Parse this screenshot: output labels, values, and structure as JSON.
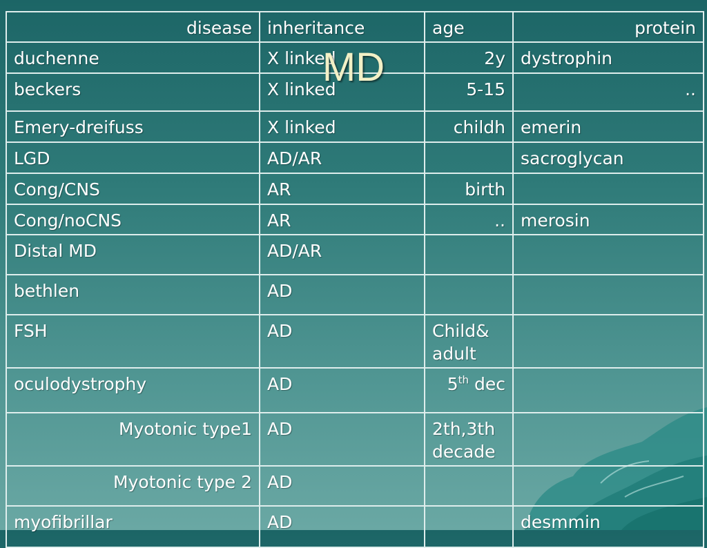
{
  "slide": {
    "title": "MD",
    "header": {
      "disease": "disease",
      "inheritance": "inheritance",
      "age": "age",
      "protein": "protein"
    },
    "rows": [
      {
        "disease": "duchenne",
        "inheritance": "X linked",
        "age": "2y",
        "protein": "dystrophin"
      },
      {
        "disease": "beckers",
        "inheritance": "X linked",
        "age": "5-15",
        "protein": ".."
      },
      {
        "disease": "Emery-dreifuss",
        "inheritance": "X linked",
        "age": "childh",
        "protein": "emerin"
      },
      {
        "disease": "LGD",
        "inheritance": "AD/AR",
        "age": "",
        "protein": "sacroglycan"
      },
      {
        "disease": "Cong/CNS",
        "inheritance": "AR",
        "age": "birth",
        "protein": ""
      },
      {
        "disease": "Cong/noCNS",
        "inheritance": "AR",
        "age": "..",
        "protein": "merosin"
      },
      {
        "disease": "Distal MD",
        "inheritance": "AD/AR",
        "age": "",
        "protein": ""
      },
      {
        "disease": "bethlen",
        "inheritance": "AD",
        "age": "",
        "protein": ""
      },
      {
        "disease": "FSH",
        "inheritance": "AD",
        "age": "Child& adult",
        "protein": ""
      },
      {
        "disease": "oculodystrophy",
        "inheritance": "AD",
        "age_num": "5",
        "age_sup": "th",
        "age_rest": " dec",
        "protein": ""
      },
      {
        "disease": "Myotonic type1",
        "inheritance": "AD",
        "age": "2th,3th decade",
        "protein": ""
      },
      {
        "disease": "Myotonic type 2",
        "inheritance": "AD",
        "age": "",
        "protein": ""
      },
      {
        "disease": "myofibrillar",
        "inheritance": "AD",
        "age": "",
        "protein": "desmmin"
      }
    ]
  },
  "colors": {
    "background_top": "#1c6566",
    "background_bottom": "#6aa8a4",
    "grid_line": "#dfeeed",
    "title_text": "#f2f0c6"
  }
}
